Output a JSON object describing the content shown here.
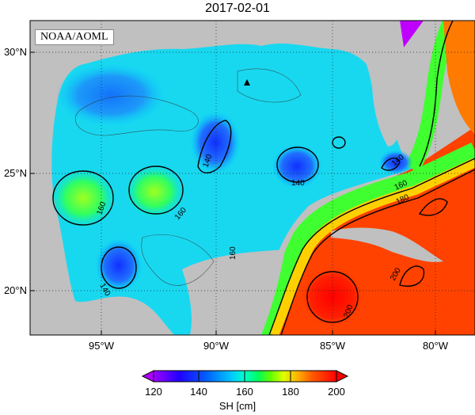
{
  "map": {
    "title": "2017-02-01",
    "credit": "NOAA/AOML",
    "latitude_labels": [
      "30°N",
      "25°N",
      "20°N"
    ],
    "longitude_labels": [
      "95°W",
      "90°W",
      "85°W",
      "80°W"
    ],
    "contour_labels": [
      "140",
      "140",
      "140",
      "160",
      "160",
      "160",
      "180",
      "200",
      "200",
      "140",
      "160"
    ],
    "marker": "triangle-marker",
    "colors": {
      "land": "#c0c0c0",
      "ocean_low": "#0000ff",
      "ocean_mid": "#00c8ff",
      "loop_current": "#ff0000"
    }
  },
  "colorbar": {
    "title": "SH [cm]",
    "ticks": [
      "120",
      "140",
      "160",
      "180",
      "200"
    ],
    "range": [
      120,
      200
    ],
    "colors": [
      "#ff00ff",
      "#8800ff",
      "#0000ff",
      "#0088ff",
      "#00ffff",
      "#00ff88",
      "#00ff00",
      "#88ff00",
      "#ffff00",
      "#ffaa00",
      "#ff5500",
      "#ff0000"
    ]
  }
}
